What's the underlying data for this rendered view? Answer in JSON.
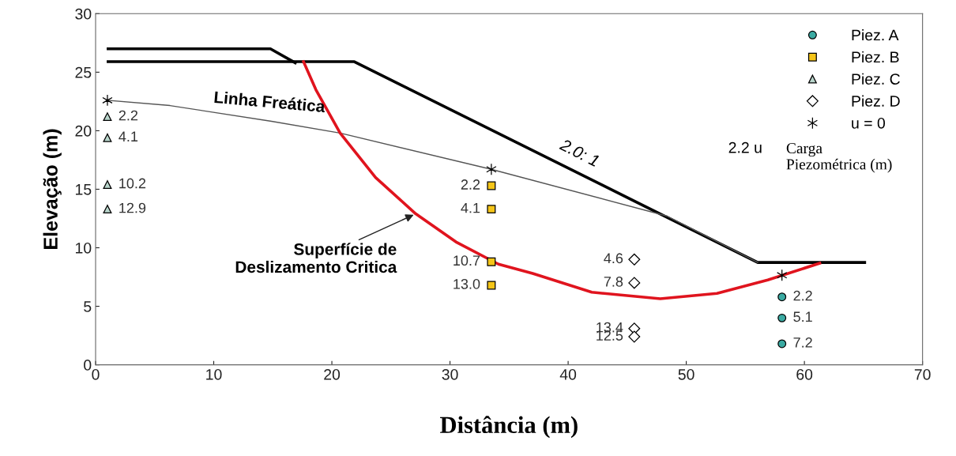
{
  "chart_data": {
    "type": "scatter",
    "xlabel": "Distância (m)",
    "ylabel": "Elevação (m)",
    "xlim": [
      0,
      70
    ],
    "xticks": [
      0,
      10,
      20,
      30,
      40,
      50,
      60,
      70
    ],
    "ylim": [
      0,
      30
    ],
    "yticks": [
      0,
      5,
      10,
      15,
      20,
      25,
      30
    ],
    "grid": false,
    "legend": "top right",
    "series": [
      {
        "name": "Piez. A",
        "marker": "circle",
        "color": "#3aaaa2",
        "x": [
          58.1,
          58.1,
          58.1
        ],
        "values": [
          5.8,
          4.0,
          1.8
        ]
      },
      {
        "name": "Piez. B",
        "marker": "square",
        "color": "#f5c518",
        "x": [
          33.5,
          33.5,
          33.5,
          33.5
        ],
        "values": [
          15.3,
          13.3,
          8.8,
          6.8
        ]
      },
      {
        "name": "Piez. C",
        "marker": "triangle",
        "color": "#b9d6cc",
        "x": [
          1.0,
          1.0,
          1.0,
          1.0
        ],
        "values": [
          21.2,
          19.4,
          15.4,
          13.3
        ]
      },
      {
        "name": "Piez. D",
        "marker": "diamond",
        "color": "#ffffff",
        "x": [
          45.6,
          45.6,
          45.6,
          45.6
        ],
        "values": [
          9.0,
          7.0,
          3.1,
          2.4
        ]
      },
      {
        "name": "u = 0",
        "marker": "cross",
        "color": "#000000",
        "x": [
          1.0,
          33.5,
          58.1
        ],
        "values": [
          22.6,
          16.7,
          7.65
        ]
      },
      {
        "type": "line",
        "color": "#000000",
        "x": [
          1.06,
          14.8,
          16.9
        ],
        "values": [
          27.0,
          27.0,
          25.8
        ]
      },
      {
        "type": "line",
        "color": "#000000",
        "x": [
          1.06,
          16.9,
          21.9,
          56.05,
          65.1
        ],
        "values": [
          25.9,
          25.9,
          25.9,
          8.74,
          8.74
        ]
      },
      {
        "type": "line",
        "color": "#555555",
        "x": [
          1.0,
          6.3,
          14.9,
          20.7,
          33.5,
          48.4,
          56.05
        ],
        "values": [
          22.6,
          22.15,
          20.8,
          19.8,
          16.7,
          12.7,
          8.74
        ]
      },
      {
        "type": "line",
        "color": "#e0141e",
        "x": [
          17.6,
          18.65,
          20.7,
          23.7,
          27.1,
          30.5,
          34.1,
          37.0,
          42.0,
          47.8,
          52.6,
          56.9,
          61.3
        ],
        "values": [
          25.9,
          23.5,
          19.8,
          16.0,
          12.9,
          10.5,
          8.6,
          7.8,
          6.2,
          5.65,
          6.1,
          7.25,
          8.68
        ]
      }
    ],
    "annotations": [
      "Linha Freática",
      {
        "text": "Superfície de\nDeslizamento Critica",
        "x": 27.1,
        "y": 12.9
      },
      "2.0: 1",
      "2.2 u",
      "Carga\nPiezométrica (m)",
      {
        "text": "2.2",
        "x": 58.1,
        "y": 5.8
      },
      {
        "text": "5.1",
        "x": 58.1,
        "y": 4.0
      },
      {
        "text": "7.2",
        "x": 58.1,
        "y": 1.8
      },
      {
        "text": "2.2",
        "x": 33.5,
        "y": 15.3
      },
      {
        "text": "4.1",
        "x": 33.5,
        "y": 13.3
      },
      {
        "text": "10.7",
        "x": 33.5,
        "y": 8.8
      },
      {
        "text": "13.0",
        "x": 33.5,
        "y": 6.8
      },
      {
        "text": "2.2",
        "x": 1.0,
        "y": 21.2
      },
      {
        "text": "4.1",
        "x": 1.0,
        "y": 19.4
      },
      {
        "text": "10.2",
        "x": 1.0,
        "y": 15.4
      },
      {
        "text": "12.9",
        "x": 1.0,
        "y": 13.3
      },
      {
        "text": "4.6",
        "x": 45.6,
        "y": 9.0
      },
      {
        "text": "7.8",
        "x": 45.6,
        "y": 7.0
      },
      {
        "text": "13.4",
        "x": 45.6,
        "y": 3.1
      },
      {
        "text": "12.5",
        "x": 45.6,
        "y": 2.4
      }
    ]
  }
}
